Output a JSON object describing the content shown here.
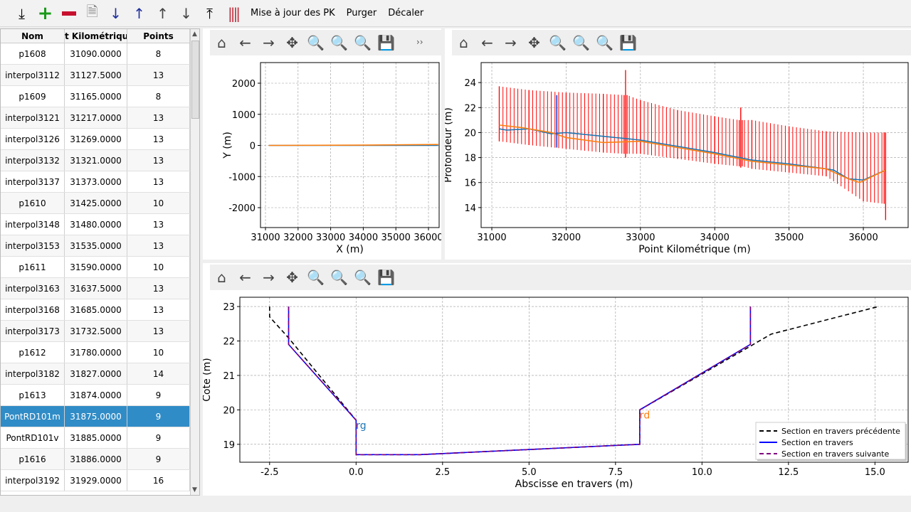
{
  "toolbar": {
    "icons": [
      "import-icon",
      "add-icon",
      "remove-icon",
      "document-icon",
      "sort-ascending-icon",
      "sort-descending-icon",
      "move-up-icon",
      "move-down-icon",
      "export-icon",
      "profile-lines-icon"
    ],
    "update_pk": "Mise à jour des PK",
    "purge": "Purger",
    "shift": "Décaler"
  },
  "table": {
    "columns": [
      "Nom",
      "t Kilométrique",
      "Points"
    ],
    "rows": [
      [
        "p1608",
        "31090.0000",
        "8"
      ],
      [
        "interpol3112",
        "31127.5000",
        "13"
      ],
      [
        "p1609",
        "31165.0000",
        "8"
      ],
      [
        "interpol3121",
        "31217.0000",
        "13"
      ],
      [
        "interpol3126",
        "31269.0000",
        "13"
      ],
      [
        "interpol3132",
        "31321.0000",
        "13"
      ],
      [
        "interpol3137",
        "31373.0000",
        "13"
      ],
      [
        "p1610",
        "31425.0000",
        "10"
      ],
      [
        "interpol3148",
        "31480.0000",
        "13"
      ],
      [
        "interpol3153",
        "31535.0000",
        "13"
      ],
      [
        "p1611",
        "31590.0000",
        "10"
      ],
      [
        "interpol3163",
        "31637.5000",
        "13"
      ],
      [
        "interpol3168",
        "31685.0000",
        "13"
      ],
      [
        "interpol3173",
        "31732.5000",
        "13"
      ],
      [
        "p1612",
        "31780.0000",
        "10"
      ],
      [
        "interpol3182",
        "31827.0000",
        "14"
      ],
      [
        "p1613",
        "31874.0000",
        "9"
      ],
      [
        "PontRD101m",
        "31875.0000",
        "9"
      ],
      [
        "PontRD101v",
        "31885.0000",
        "9"
      ],
      [
        "p1616",
        "31886.0000",
        "9"
      ],
      [
        "interpol3192",
        "31929.0000",
        "16"
      ]
    ],
    "selected": "PontRD101m",
    "selected_color": "#308cc6"
  },
  "plot_toolbar": [
    "home-icon",
    "back-icon",
    "forward-icon",
    "pan-icon",
    "zoom-icon",
    "zoom-1-icon",
    "zoom-fit-icon",
    "save-icon"
  ],
  "chart_data": [
    {
      "type": "line",
      "xlabel": "X (m)",
      "ylabel": "Y (m)",
      "xlim": [
        30847,
        36327
      ],
      "ylim": [
        -2640,
        2663
      ],
      "xticks": [
        31000,
        32000,
        33000,
        34000,
        35000,
        36000
      ],
      "yticks": [
        -2000,
        -1000,
        0,
        1000,
        2000
      ],
      "grid": true,
      "series": [
        {
          "color": "#1f77b4",
          "x": [
            31100,
            36300
          ],
          "y": [
            0,
            0
          ]
        },
        {
          "color": "#ff7f0e",
          "x": [
            31100,
            34000,
            36300
          ],
          "y": [
            0,
            10,
            30
          ]
        }
      ]
    },
    {
      "type": "line",
      "xlabel": "Point Kilométrique (m)",
      "ylabel": "Profondeur (m)",
      "xlim": [
        30856,
        36603
      ],
      "ylim": [
        12.4,
        25.6
      ],
      "xticks": [
        31000,
        32000,
        33000,
        34000,
        35000,
        36000
      ],
      "yticks": [
        14,
        16,
        18,
        20,
        22,
        24
      ],
      "grid": true,
      "profiles": {
        "color": "#ff0000",
        "pk": [
          31100,
          31500,
          32000,
          32500,
          32780,
          32800,
          32820,
          33000,
          33500,
          34000,
          34330,
          34350,
          34370,
          34500,
          35000,
          35500,
          36000,
          36280,
          36300
        ],
        "top": [
          23.7,
          23.4,
          23.2,
          23.1,
          23.0,
          25.0,
          23.0,
          22.6,
          21.8,
          21.3,
          21.0,
          22.0,
          21.0,
          21.0,
          20.5,
          20.1,
          20.0,
          20.0,
          20.0
        ],
        "bottom": [
          19.3,
          19.0,
          18.7,
          18.4,
          18.3,
          18.0,
          18.3,
          18.3,
          17.9,
          17.5,
          17.3,
          17.2,
          17.3,
          17.1,
          16.8,
          16.5,
          14.5,
          14.3,
          13.0
        ]
      },
      "series": [
        {
          "color": "#1f77b4",
          "x": [
            31100,
            31200,
            31500,
            31800,
            32000,
            32500,
            33000,
            33500,
            34000,
            34500,
            35000,
            35500,
            35600,
            35800,
            36000,
            36300
          ],
          "y": [
            20.3,
            20.2,
            20.3,
            19.9,
            20.0,
            19.7,
            19.4,
            18.9,
            18.4,
            17.8,
            17.5,
            17.1,
            17.0,
            16.3,
            16.2,
            17.0
          ]
        },
        {
          "color": "#ff7f0e",
          "x": [
            31100,
            31400,
            31800,
            32000,
            32500,
            33000,
            33500,
            34000,
            34500,
            35000,
            35500,
            35800,
            35950,
            36300
          ],
          "y": [
            20.6,
            20.4,
            20.0,
            19.6,
            19.2,
            19.3,
            18.8,
            18.3,
            17.7,
            17.4,
            17.1,
            16.3,
            16.0,
            17.0
          ]
        },
        {
          "color": "#1f3fd0",
          "x": [
            31874,
            31874
          ],
          "y": [
            18.8,
            23.0
          ]
        }
      ]
    },
    {
      "type": "line",
      "xlabel": "Abscisse en travers (m)",
      "ylabel": "Cote (m)",
      "xlim": [
        -3.36,
        15.96
      ],
      "ylim": [
        18.48,
        23.27
      ],
      "xticks": [
        -2.5,
        0.0,
        2.5,
        5.0,
        7.5,
        10.0,
        12.5,
        15.0
      ],
      "yticks": [
        19,
        20,
        21,
        22,
        23
      ],
      "grid": true,
      "legend": "bottom-right",
      "series": [
        {
          "name": "Section en travers précédente",
          "color": "#000000",
          "dash": "6,4",
          "x": [
            -2.5,
            -2.5,
            -1.96,
            0,
            0,
            1.85,
            8.2,
            8.2,
            11.4,
            12,
            15.1
          ],
          "y": [
            23,
            22.7,
            22.1,
            19.7,
            18.7,
            18.7,
            19.0,
            20.0,
            21.85,
            22.2,
            23.0
          ]
        },
        {
          "name": "Section en travers",
          "color": "#0000ff",
          "dash": "",
          "x": [
            -1.95,
            -1.95,
            0,
            0,
            1.85,
            8.2,
            8.2,
            11.4,
            11.4
          ],
          "y": [
            23,
            21.9,
            19.7,
            18.7,
            18.7,
            19.0,
            20.0,
            21.9,
            23
          ]
        },
        {
          "name": "Section en travers suivante",
          "color": "#800080",
          "dash": "6,4",
          "x": [
            -1.95,
            -1.95,
            0,
            0,
            1.85,
            8.2,
            8.2,
            11.4,
            11.4
          ],
          "y": [
            23,
            21.9,
            19.7,
            18.7,
            18.7,
            19.0,
            20.0,
            21.9,
            23
          ]
        }
      ],
      "annotations": [
        {
          "text": "rg",
          "x": 0,
          "y": 19.55,
          "color": "#1f77b4"
        },
        {
          "text": "rd",
          "x": 8.2,
          "y": 19.85,
          "color": "#ff7f0e"
        }
      ]
    }
  ]
}
